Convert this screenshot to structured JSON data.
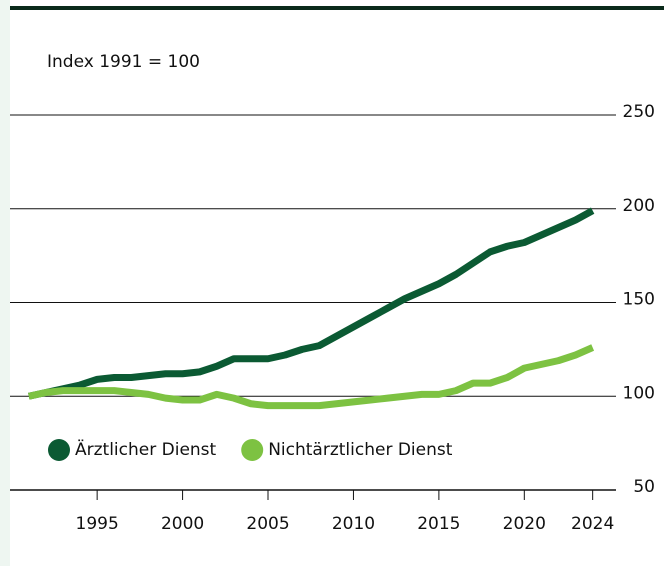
{
  "chart_data": {
    "type": "line",
    "y_label": "Index 1991 = 100",
    "x": [
      1991,
      1992,
      1993,
      1994,
      1995,
      1996,
      1997,
      1998,
      1999,
      2000,
      2001,
      2002,
      2003,
      2004,
      2005,
      2006,
      2007,
      2008,
      2009,
      2010,
      2011,
      2012,
      2013,
      2014,
      2015,
      2016,
      2017,
      2018,
      2019,
      2020,
      2021,
      2022,
      2023,
      2024
    ],
    "series": [
      {
        "name": "Ärztlicher Dienst",
        "color": "#0b5a33",
        "values": [
          100,
          102,
          104,
          106,
          109,
          110,
          110,
          111,
          112,
          112,
          113,
          116,
          120,
          120,
          120,
          122,
          125,
          127,
          132,
          137,
          142,
          147,
          152,
          156,
          160,
          165,
          171,
          177,
          180,
          182,
          186,
          190,
          194,
          199
        ]
      },
      {
        "name": "Nichtärztlicher Dienst",
        "color": "#7dc242",
        "values": [
          100,
          102,
          103,
          103,
          103,
          103,
          102,
          101,
          99,
          98,
          98,
          101,
          99,
          96,
          95,
          95,
          95,
          95,
          96,
          97,
          98,
          99,
          100,
          101,
          101,
          103,
          107,
          107,
          110,
          115,
          117,
          119,
          122,
          126
        ]
      }
    ],
    "xlim": [
      1989.9,
      2025.6
    ],
    "xticks": [
      1995,
      2000,
      2005,
      2010,
      2015,
      2020,
      2024
    ],
    "ylim": [
      50,
      250
    ],
    "yticks": [
      50,
      100,
      150,
      200,
      250
    ],
    "grid": true
  }
}
